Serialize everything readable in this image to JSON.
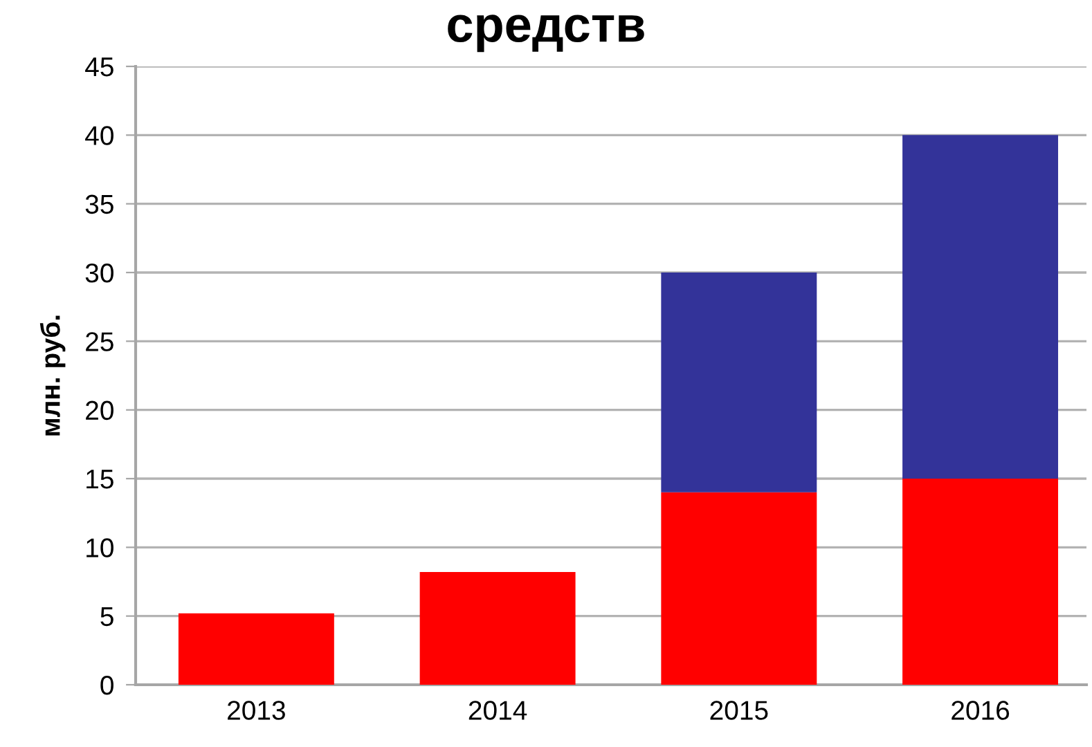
{
  "chart_data": {
    "type": "bar",
    "title": "средств",
    "ylabel": "млн. руб.",
    "categories": [
      "2013",
      "2014",
      "2015",
      "2016"
    ],
    "series": [
      {
        "color": "#ff0000",
        "values": [
          5.2,
          8.2,
          14,
          15
        ]
      },
      {
        "color": "#333399",
        "values": [
          null,
          null,
          16,
          25
        ]
      }
    ],
    "stacked": true,
    "ylim": [
      0,
      45
    ],
    "yticks": [
      0,
      5,
      10,
      15,
      20,
      25,
      30,
      35,
      40,
      45
    ],
    "grid": "y",
    "legend": false
  }
}
